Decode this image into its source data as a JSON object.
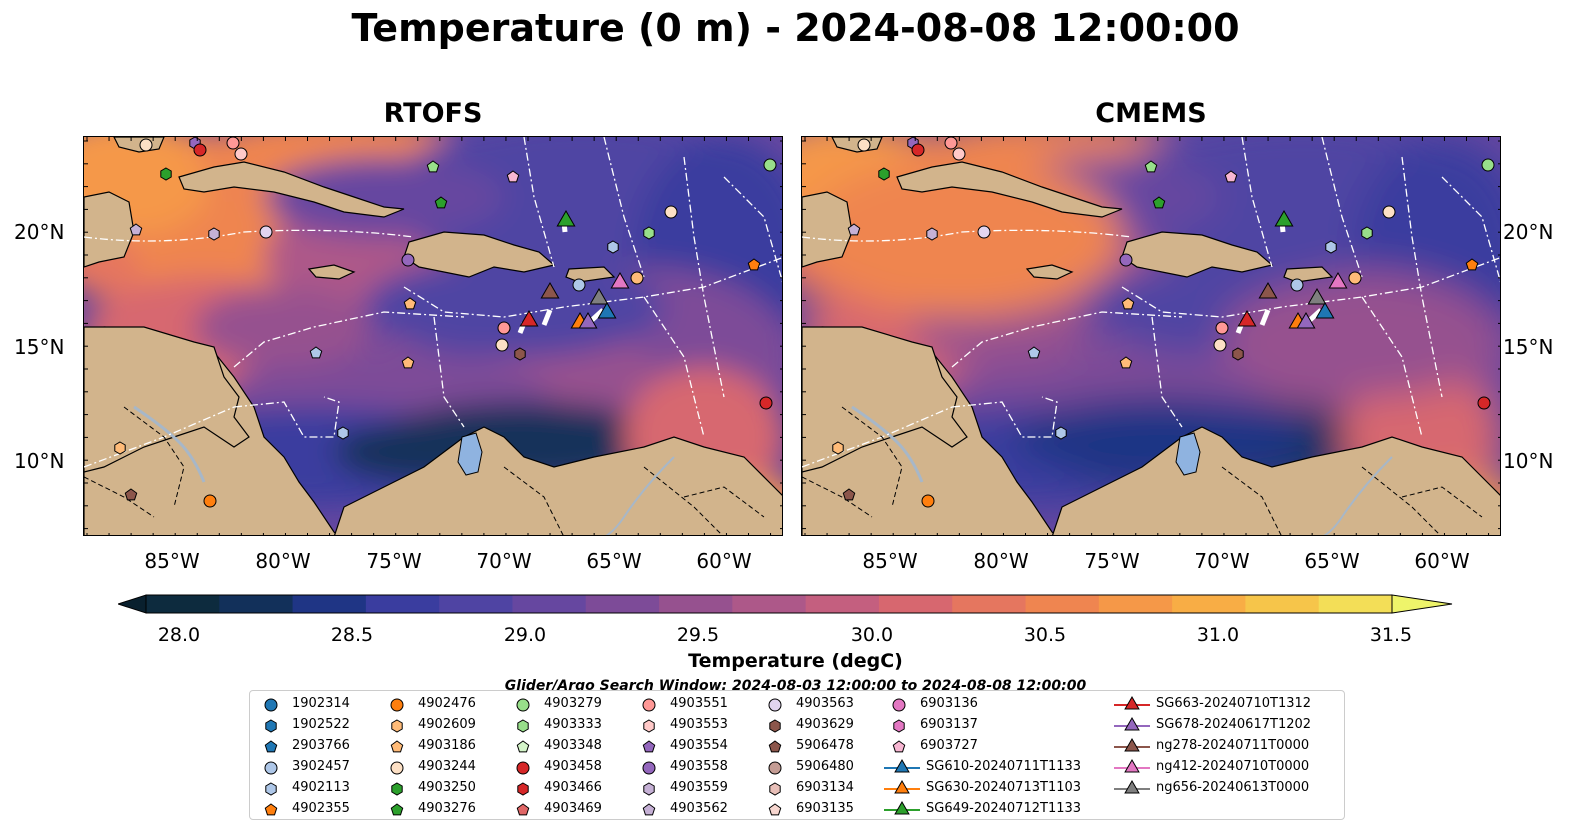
{
  "title": "Temperature (0 m) - 2024-08-08 12:00:00",
  "panels": [
    {
      "title": "RTOFS"
    },
    {
      "title": "CMEMS"
    }
  ],
  "lat_labels": [
    "20°N",
    "15°N",
    "10°N"
  ],
  "lon_labels": [
    "85°W",
    "80°W",
    "75°W",
    "70°W",
    "65°W",
    "60°W"
  ],
  "colorbar": {
    "label": "Temperature (degC)",
    "ticks": [
      "28.0",
      "28.5",
      "29.0",
      "29.5",
      "30.0",
      "30.5",
      "31.0",
      "31.5"
    ],
    "colors": [
      "#0d2b3e",
      "#12305a",
      "#1f3585",
      "#3a3d9f",
      "#4f44a3",
      "#6647a0",
      "#7d4b98",
      "#96518f",
      "#ad5889",
      "#c45f7f",
      "#d7676f",
      "#e5765f",
      "#ef8550",
      "#f59848",
      "#f8ad45",
      "#f6c54a",
      "#f3de57"
    ],
    "under_color": "#09202e",
    "over_color": "#eef46a"
  },
  "search_window": "Glider/Argo Search Window: 2024-08-03 12:00:00 to 2024-08-08 12:00:00",
  "legend": {
    "columns": [
      [
        {
          "label": "1902314",
          "marker": "circle",
          "color": "#1f77b4"
        },
        {
          "label": "1902522",
          "marker": "hexagon",
          "color": "#1f77b4"
        },
        {
          "label": "2903766",
          "marker": "pentagon",
          "color": "#1f77b4"
        },
        {
          "label": "3902457",
          "marker": "circle",
          "color": "#aec7e8"
        },
        {
          "label": "4902113",
          "marker": "hexagon",
          "color": "#aec7e8"
        },
        {
          "label": "4902355",
          "marker": "pentagon",
          "color": "#ff7f0e"
        }
      ],
      [
        {
          "label": "4902476",
          "marker": "circle",
          "color": "#ff7f0e"
        },
        {
          "label": "4902609",
          "marker": "hexagon",
          "color": "#ffbb78"
        },
        {
          "label": "4903186",
          "marker": "pentagon",
          "color": "#ffbb78"
        },
        {
          "label": "4903244",
          "marker": "circle",
          "color": "#fde0c5"
        },
        {
          "label": "4903250",
          "marker": "hexagon",
          "color": "#2ca02c"
        },
        {
          "label": "4903276",
          "marker": "pentagon",
          "color": "#2ca02c"
        }
      ],
      [
        {
          "label": "4903279",
          "marker": "circle",
          "color": "#98df8a"
        },
        {
          "label": "4903333",
          "marker": "hexagon",
          "color": "#98df8a"
        },
        {
          "label": "4903348",
          "marker": "pentagon",
          "color": "#d4f5c9"
        },
        {
          "label": "4903458",
          "marker": "circle",
          "color": "#d62728"
        },
        {
          "label": "4903466",
          "marker": "hexagon",
          "color": "#d62728"
        },
        {
          "label": "4903469",
          "marker": "pentagon",
          "color": "#e06666"
        }
      ],
      [
        {
          "label": "4903551",
          "marker": "circle",
          "color": "#ff9896"
        },
        {
          "label": "4903553",
          "marker": "hexagon",
          "color": "#ffc9c8"
        },
        {
          "label": "4903554",
          "marker": "pentagon",
          "color": "#9467bd"
        },
        {
          "label": "4903558",
          "marker": "circle",
          "color": "#9467bd"
        },
        {
          "label": "4903559",
          "marker": "hexagon",
          "color": "#c5b0d5"
        },
        {
          "label": "4903562",
          "marker": "pentagon",
          "color": "#c5b0d5"
        }
      ],
      [
        {
          "label": "4903563",
          "marker": "circle",
          "color": "#e2d4ef"
        },
        {
          "label": "4903629",
          "marker": "hexagon",
          "color": "#8c564b"
        },
        {
          "label": "5906478",
          "marker": "pentagon",
          "color": "#8c564b"
        },
        {
          "label": "5906480",
          "marker": "circle",
          "color": "#c49c94"
        },
        {
          "label": "6903134",
          "marker": "hexagon",
          "color": "#e8bfb8"
        },
        {
          "label": "6903135",
          "marker": "pentagon",
          "color": "#f7d6cf"
        }
      ],
      [
        {
          "label": "6903136",
          "marker": "circle",
          "color": "#e377c2"
        },
        {
          "label": "6903137",
          "marker": "hexagon",
          "color": "#e377c2"
        },
        {
          "label": "6903727",
          "marker": "pentagon",
          "color": "#f7b6d2"
        },
        {
          "label": "SG610-20240711T1133",
          "marker": "triangle",
          "color": "#1f77b4"
        },
        {
          "label": "SG630-20240713T1103",
          "marker": "triangle",
          "color": "#ff7f0e"
        },
        {
          "label": "SG649-20240712T1133",
          "marker": "triangle",
          "color": "#2ca02c"
        }
      ],
      [
        {
          "label": "SG663-20240710T1312",
          "marker": "triangle",
          "color": "#d62728"
        },
        {
          "label": "SG678-20240617T1202",
          "marker": "triangle",
          "color": "#9467bd"
        },
        {
          "label": "ng278-20240711T0000",
          "marker": "triangle",
          "color": "#8c564b"
        },
        {
          "label": "ng412-20240710T0000",
          "marker": "triangle",
          "color": "#e377c2"
        },
        {
          "label": "ng656-20240613T0000",
          "marker": "triangle",
          "color": "#7f7f7f"
        }
      ]
    ]
  },
  "colors": {
    "land": "#d2b48c",
    "lake": "#8fb3e0",
    "river": "#a7b7c8",
    "boundary": "#ffffff"
  }
}
